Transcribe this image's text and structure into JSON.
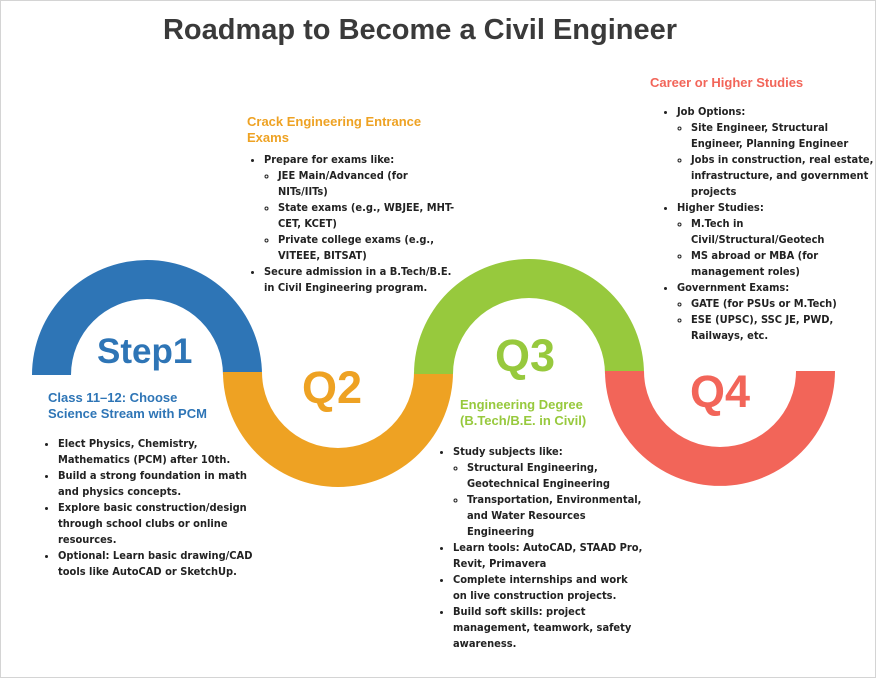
{
  "title": "Roadmap to Become a Civil Engineer",
  "colors": {
    "step1": "#2e75b6",
    "q2": "#eea223",
    "q3": "#97c93d",
    "q4": "#f26559",
    "text": "#222222"
  },
  "stages": {
    "step1": {
      "label": "Step1",
      "title": "Class 11–12: Choose Science Stream with PCM",
      "items": [
        {
          "text": "Elect Physics, Chemistry, Mathematics (PCM) after 10th."
        },
        {
          "text": "Build a strong foundation in math and physics concepts."
        },
        {
          "text": "Explore basic construction/design through school clubs or online resources."
        },
        {
          "text": "Optional: Learn basic drawing/CAD tools like AutoCAD or SketchUp."
        }
      ]
    },
    "q2": {
      "label": "Q2",
      "title": "Crack Engineering Entrance Exams",
      "items": [
        {
          "text": "Prepare for exams like:",
          "sub": [
            "JEE Main/Advanced (for NITs/IITs)",
            "State exams (e.g., WBJEE, MHT-CET, KCET)",
            "Private college exams (e.g., VITEEE, BITSAT)"
          ]
        },
        {
          "text": "Secure admission in a B.Tech/B.E. in Civil Engineering program."
        }
      ]
    },
    "q3": {
      "label": "Q3",
      "title": "Engineering Degree (B.Tech/B.E. in Civil)",
      "items": [
        {
          "text": "Study subjects like:",
          "sub": [
            "Structural Engineering, Geotechnical Engineering",
            "Transportation, Environmental, and Water Resources Engineering"
          ]
        },
        {
          "text": "Learn tools: AutoCAD, STAAD Pro, Revit, Primavera"
        },
        {
          "text": "Complete internships and work on live construction projects."
        },
        {
          "text": "Build soft skills: project management, teamwork, safety awareness."
        }
      ]
    },
    "q4": {
      "label": "Q4",
      "title": "Career or Higher Studies",
      "items": [
        {
          "text": "Job Options:",
          "sub": [
            "Site Engineer, Structural Engineer, Planning Engineer",
            "Jobs in construction, real estate, infrastructure, and government projects"
          ]
        },
        {
          "text": "Higher Studies:",
          "sub": [
            "M.Tech in Civil/Structural/Geotech",
            "MS abroad or MBA (for management roles)"
          ]
        },
        {
          "text": "Government Exams:",
          "sub": [
            "GATE (for PSUs or M.Tech)",
            "ESE (UPSC), SSC JE, PWD, Railways, etc."
          ]
        }
      ]
    }
  }
}
